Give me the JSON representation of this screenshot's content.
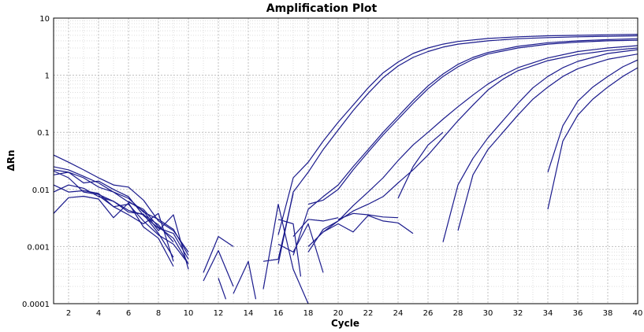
{
  "chart_data": {
    "type": "line",
    "title": "Amplification Plot",
    "xlabel": "Cycle",
    "ylabel": "ΔRn",
    "xlim": [
      1,
      40
    ],
    "ylim": [
      0.0001,
      10
    ],
    "yscale": "log",
    "grid": true,
    "legend": "none",
    "line_color": "#1a1a8c",
    "x_ticks": [
      2,
      4,
      6,
      8,
      10,
      12,
      14,
      16,
      18,
      20,
      22,
      24,
      26,
      28,
      30,
      32,
      34,
      36,
      38,
      40
    ],
    "y_ticks": [
      {
        "value": 0.0001,
        "label": "0.0001"
      },
      {
        "value": 0.001,
        "label": "0.001"
      },
      {
        "value": 0.01,
        "label": "0.01"
      },
      {
        "value": 0.1,
        "label": "0.1"
      },
      {
        "value": 1,
        "label": "1"
      },
      {
        "value": 10,
        "label": "10"
      }
    ],
    "series": [
      {
        "points": [
          [
            1,
            0.04
          ],
          [
            2,
            0.03
          ],
          [
            3,
            0.022
          ],
          [
            4,
            0.016
          ],
          [
            5,
            0.012
          ],
          [
            6,
            0.011
          ],
          [
            7,
            0.0065
          ],
          [
            8,
            0.0028
          ],
          [
            9,
            0.0019
          ],
          [
            10,
            0.0008
          ]
        ]
      },
      {
        "points": [
          [
            1,
            0.022
          ],
          [
            2,
            0.02
          ],
          [
            3,
            0.016
          ],
          [
            4,
            0.011
          ],
          [
            5,
            0.009
          ],
          [
            6,
            0.006
          ],
          [
            7,
            0.0045
          ],
          [
            8,
            0.0022
          ],
          [
            9,
            0.0014
          ],
          [
            10,
            0.0005
          ]
        ]
      },
      {
        "points": [
          [
            1,
            0.018
          ],
          [
            2,
            0.02
          ],
          [
            3,
            0.013
          ],
          [
            4,
            0.014
          ],
          [
            5,
            0.01
          ],
          [
            6,
            0.0075
          ],
          [
            7,
            0.0035
          ],
          [
            8,
            0.0021
          ],
          [
            9,
            0.0017
          ],
          [
            10,
            0.0006
          ]
        ]
      },
      {
        "points": [
          [
            1,
            0.025
          ],
          [
            2,
            0.022
          ],
          [
            3,
            0.017
          ],
          [
            4,
            0.013
          ],
          [
            5,
            0.009
          ],
          [
            6,
            0.007
          ],
          [
            7,
            0.004
          ],
          [
            8,
            0.003
          ],
          [
            9,
            0.002
          ],
          [
            10,
            0.0007
          ]
        ]
      },
      {
        "points": [
          [
            1,
            0.012
          ],
          [
            2,
            0.009
          ],
          [
            3,
            0.0095
          ],
          [
            4,
            0.0085
          ],
          [
            5,
            0.005
          ],
          [
            6,
            0.0055
          ],
          [
            7,
            0.0028
          ],
          [
            8,
            0.0016
          ],
          [
            9,
            0.0011
          ],
          [
            10,
            0.0005
          ]
        ]
      },
      {
        "points": [
          [
            1,
            0.009
          ],
          [
            2,
            0.012
          ],
          [
            3,
            0.0105
          ],
          [
            4,
            0.0075
          ],
          [
            5,
            0.0062
          ],
          [
            6,
            0.0043
          ],
          [
            7,
            0.0036
          ],
          [
            8,
            0.0024
          ],
          [
            9,
            0.0012
          ]
        ]
      },
      {
        "points": [
          [
            1,
            0.0038
          ],
          [
            2,
            0.0072
          ],
          [
            3,
            0.0076
          ],
          [
            4,
            0.0068
          ],
          [
            5,
            0.0032
          ],
          [
            6,
            0.0058
          ],
          [
            7,
            0.0022
          ],
          [
            8,
            0.0014
          ],
          [
            9,
            0.00045
          ]
        ]
      },
      {
        "points": [
          [
            1,
            0.021
          ],
          [
            2,
            0.016
          ],
          [
            3,
            0.009
          ],
          [
            4,
            0.0082
          ],
          [
            5,
            0.0062
          ],
          [
            6,
            0.004
          ],
          [
            7,
            0.0037
          ],
          [
            8,
            0.0017
          ],
          [
            9,
            0.00065
          ]
        ]
      },
      {
        "points": [
          [
            4,
            0.0078
          ],
          [
            5,
            0.005
          ],
          [
            6,
            0.0036
          ],
          [
            7,
            0.0025
          ],
          [
            8,
            0.0038
          ],
          [
            9,
            0.00055
          ]
        ]
      },
      {
        "points": [
          [
            6,
            0.0062
          ],
          [
            7,
            0.0042
          ],
          [
            8,
            0.0019
          ],
          [
            9,
            0.0036
          ],
          [
            10,
            0.0004
          ]
        ]
      },
      {
        "points": [
          [
            11,
            0.00025
          ],
          [
            12,
            0.00085
          ],
          [
            13,
            0.0002
          ]
        ]
      },
      {
        "points": [
          [
            11,
            0.00035
          ],
          [
            12,
            0.0015
          ],
          [
            13,
            0.001
          ]
        ]
      },
      {
        "points": [
          [
            12,
            0.00028
          ],
          [
            12.5,
            0.00012
          ]
        ]
      },
      {
        "points": [
          [
            13,
            0.00015
          ],
          [
            14,
            0.00055
          ],
          [
            14.5,
            0.00012
          ]
        ]
      },
      {
        "points": [
          [
            15,
            0.00018
          ],
          [
            16,
            0.0055
          ],
          [
            17,
            0.0004
          ],
          [
            18,
            0.0001
          ]
        ]
      },
      {
        "points": [
          [
            15,
            0.00055
          ],
          [
            16,
            0.0006
          ],
          [
            17,
            0.0085
          ]
        ]
      },
      {
        "points": [
          [
            16,
            0.003
          ],
          [
            17,
            0.0025
          ],
          [
            17.5,
            0.0003
          ]
        ]
      },
      {
        "points": [
          [
            16,
            0.0011
          ],
          [
            17,
            0.0008
          ],
          [
            18,
            0.0025
          ],
          [
            19,
            0.00035
          ]
        ]
      },
      {
        "points": [
          [
            17,
            0.0015
          ],
          [
            18,
            0.003
          ],
          [
            19,
            0.0028
          ],
          [
            20,
            0.0032
          ]
        ]
      },
      {
        "points": [
          [
            16,
            0.0016
          ],
          [
            17,
            0.016
          ],
          [
            18,
            0.03
          ],
          [
            19,
            0.07
          ],
          [
            20,
            0.15
          ],
          [
            21,
            0.3
          ],
          [
            22,
            0.6
          ],
          [
            23,
            1.1
          ],
          [
            24,
            1.7
          ],
          [
            25,
            2.4
          ],
          [
            26,
            3.0
          ],
          [
            27,
            3.5
          ],
          [
            28,
            3.9
          ],
          [
            30,
            4.4
          ],
          [
            32,
            4.7
          ],
          [
            34,
            4.9
          ],
          [
            36,
            5.0
          ],
          [
            38,
            5.1
          ],
          [
            40,
            5.2
          ]
        ]
      },
      {
        "points": [
          [
            16,
            0.0005
          ],
          [
            17,
            0.009
          ],
          [
            18,
            0.02
          ],
          [
            19,
            0.05
          ],
          [
            20,
            0.11
          ],
          [
            21,
            0.24
          ],
          [
            22,
            0.48
          ],
          [
            23,
            0.9
          ],
          [
            24,
            1.45
          ],
          [
            25,
            2.05
          ],
          [
            26,
            2.6
          ],
          [
            27,
            3.1
          ],
          [
            28,
            3.5
          ],
          [
            30,
            4.0
          ],
          [
            32,
            4.35
          ],
          [
            34,
            4.55
          ],
          [
            36,
            4.7
          ],
          [
            38,
            4.8
          ],
          [
            40,
            4.9
          ]
        ]
      },
      {
        "points": [
          [
            17,
            0.0007
          ],
          [
            18,
            0.0045
          ],
          [
            19,
            0.0075
          ],
          [
            20,
            0.012
          ],
          [
            21,
            0.025
          ],
          [
            22,
            0.05
          ],
          [
            23,
            0.1
          ],
          [
            24,
            0.19
          ],
          [
            25,
            0.36
          ],
          [
            26,
            0.65
          ],
          [
            27,
            1.05
          ],
          [
            28,
            1.55
          ],
          [
            29,
            2.05
          ],
          [
            30,
            2.5
          ],
          [
            32,
            3.2
          ],
          [
            34,
            3.7
          ],
          [
            36,
            4.0
          ],
          [
            38,
            4.2
          ],
          [
            40,
            4.35
          ]
        ]
      },
      {
        "points": [
          [
            18,
            0.0055
          ],
          [
            19,
            0.0065
          ],
          [
            20,
            0.01
          ],
          [
            21,
            0.022
          ],
          [
            22,
            0.045
          ],
          [
            23,
            0.09
          ],
          [
            24,
            0.17
          ],
          [
            25,
            0.32
          ],
          [
            26,
            0.58
          ],
          [
            27,
            0.95
          ],
          [
            28,
            1.4
          ],
          [
            29,
            1.9
          ],
          [
            30,
            2.35
          ],
          [
            32,
            3.0
          ],
          [
            34,
            3.5
          ],
          [
            36,
            3.8
          ],
          [
            38,
            4.0
          ],
          [
            40,
            4.1
          ]
        ]
      },
      {
        "points": [
          [
            18,
            0.0008
          ],
          [
            19,
            0.002
          ],
          [
            20,
            0.0028
          ],
          [
            21,
            0.0052
          ],
          [
            22,
            0.009
          ],
          [
            23,
            0.016
          ],
          [
            24,
            0.032
          ],
          [
            25,
            0.06
          ],
          [
            26,
            0.1
          ],
          [
            27,
            0.17
          ],
          [
            28,
            0.28
          ],
          [
            29,
            0.45
          ],
          [
            30,
            0.7
          ],
          [
            31,
            1.0
          ],
          [
            32,
            1.35
          ],
          [
            34,
            2.0
          ],
          [
            36,
            2.6
          ],
          [
            38,
            3.0
          ],
          [
            40,
            3.3
          ]
        ]
      },
      {
        "points": [
          [
            18,
            0.001
          ],
          [
            19,
            0.0018
          ],
          [
            20,
            0.0028
          ],
          [
            21,
            0.0042
          ],
          [
            22,
            0.0055
          ],
          [
            23,
            0.0075
          ],
          [
            24,
            0.013
          ],
          [
            25,
            0.022
          ],
          [
            26,
            0.04
          ],
          [
            27,
            0.08
          ],
          [
            28,
            0.16
          ],
          [
            29,
            0.3
          ],
          [
            30,
            0.55
          ],
          [
            31,
            0.85
          ],
          [
            32,
            1.2
          ],
          [
            34,
            1.8
          ],
          [
            36,
            2.3
          ],
          [
            38,
            2.7
          ],
          [
            40,
            3.0
          ]
        ]
      },
      {
        "points": [
          [
            19,
            0.0018
          ],
          [
            20,
            0.0025
          ],
          [
            21,
            0.0018
          ],
          [
            22,
            0.0035
          ],
          [
            23,
            0.0028
          ],
          [
            24,
            0.0026
          ],
          [
            25,
            0.0017
          ]
        ]
      },
      {
        "points": [
          [
            20,
            0.003
          ],
          [
            21,
            0.0038
          ],
          [
            22,
            0.0036
          ],
          [
            23,
            0.0033
          ],
          [
            24,
            0.0032
          ]
        ]
      },
      {
        "points": [
          [
            24,
            0.007
          ],
          [
            25,
            0.025
          ],
          [
            26,
            0.06
          ],
          [
            27,
            0.1
          ]
        ]
      },
      {
        "points": [
          [
            27,
            0.0012
          ],
          [
            28,
            0.012
          ],
          [
            29,
            0.035
          ],
          [
            30,
            0.08
          ],
          [
            31,
            0.16
          ],
          [
            32,
            0.32
          ],
          [
            33,
            0.6
          ],
          [
            34,
            0.95
          ],
          [
            35,
            1.35
          ],
          [
            36,
            1.75
          ],
          [
            38,
            2.4
          ],
          [
            40,
            2.8
          ]
        ]
      },
      {
        "points": [
          [
            28,
            0.0019
          ],
          [
            29,
            0.018
          ],
          [
            30,
            0.05
          ],
          [
            31,
            0.1
          ],
          [
            32,
            0.2
          ],
          [
            33,
            0.38
          ],
          [
            34,
            0.62
          ],
          [
            35,
            0.95
          ],
          [
            36,
            1.3
          ],
          [
            38,
            1.9
          ],
          [
            40,
            2.35
          ]
        ]
      },
      {
        "points": [
          [
            34,
            0.02
          ],
          [
            35,
            0.13
          ],
          [
            36,
            0.35
          ],
          [
            37,
            0.62
          ],
          [
            38,
            0.95
          ],
          [
            39,
            1.4
          ],
          [
            40,
            1.85
          ]
        ]
      },
      {
        "points": [
          [
            34,
            0.0045
          ],
          [
            35,
            0.07
          ],
          [
            36,
            0.2
          ],
          [
            37,
            0.38
          ],
          [
            38,
            0.62
          ],
          [
            39,
            0.95
          ],
          [
            40,
            1.35
          ]
        ]
      }
    ]
  }
}
